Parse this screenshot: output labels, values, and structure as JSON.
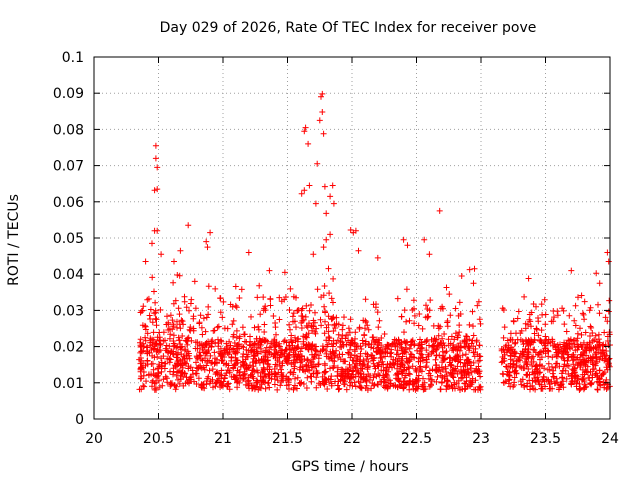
{
  "chart_data": {
    "type": "scatter",
    "title": "Day 029 of 2026, Rate Of TEC Index for receiver pove",
    "xlabel": "GPS time / hours",
    "ylabel": "ROTI / TECUs",
    "xlim": [
      20,
      24
    ],
    "ylim": [
      0,
      0.1
    ],
    "xticks": [
      "20",
      "20.5",
      "21",
      "21.5",
      "22",
      "22.5",
      "23",
      "23.5",
      "24"
    ],
    "yticks": [
      "0",
      "0.01",
      "0.02",
      "0.03",
      "0.04",
      "0.05",
      "0.06",
      "0.07",
      "0.08",
      "0.09",
      "0.1"
    ],
    "grid": true,
    "marker": "+",
    "series_color": "#ff0000",
    "data_gap": [
      23.0,
      23.16
    ],
    "series": [
      {
        "name": "ROTI",
        "points": [
          [
            20.48,
            0.0755
          ],
          [
            20.48,
            0.072
          ],
          [
            20.49,
            0.0695
          ],
          [
            20.47,
            0.0632
          ],
          [
            20.49,
            0.0635
          ],
          [
            20.47,
            0.052
          ],
          [
            20.49,
            0.052
          ],
          [
            20.45,
            0.0485
          ],
          [
            20.52,
            0.0455
          ],
          [
            20.4,
            0.0435
          ],
          [
            20.62,
            0.0435
          ],
          [
            20.67,
            0.0465
          ],
          [
            20.73,
            0.0535
          ],
          [
            20.88,
            0.0475
          ],
          [
            20.9,
            0.0515
          ],
          [
            20.87,
            0.049
          ],
          [
            21.2,
            0.046
          ],
          [
            21.36,
            0.041
          ],
          [
            21.48,
            0.0405
          ],
          [
            21.64,
            0.0805
          ],
          [
            21.63,
            0.0795
          ],
          [
            21.66,
            0.076
          ],
          [
            21.61,
            0.0622
          ],
          [
            21.63,
            0.0632
          ],
          [
            21.67,
            0.0645
          ],
          [
            21.72,
            0.0595
          ],
          [
            21.73,
            0.0705
          ],
          [
            21.75,
            0.0825
          ],
          [
            21.76,
            0.089
          ],
          [
            21.77,
            0.0898
          ],
          [
            21.77,
            0.0848
          ],
          [
            21.78,
            0.0788
          ],
          [
            21.79,
            0.0642
          ],
          [
            21.8,
            0.0568
          ],
          [
            21.83,
            0.0615
          ],
          [
            21.85,
            0.0645
          ],
          [
            21.86,
            0.0595
          ],
          [
            21.83,
            0.051
          ],
          [
            21.8,
            0.0495
          ],
          [
            21.78,
            0.0475
          ],
          [
            21.7,
            0.0455
          ],
          [
            21.99,
            0.0522
          ],
          [
            22.01,
            0.0515
          ],
          [
            22.03,
            0.052
          ],
          [
            22.05,
            0.0465
          ],
          [
            22.2,
            0.0445
          ],
          [
            22.4,
            0.0495
          ],
          [
            22.43,
            0.048
          ],
          [
            22.56,
            0.0495
          ],
          [
            22.6,
            0.0455
          ],
          [
            22.68,
            0.0575
          ],
          [
            22.85,
            0.0395
          ],
          [
            22.95,
            0.0415
          ],
          [
            23.7,
            0.041
          ],
          [
            23.92,
            0.0375
          ],
          [
            23.98,
            0.046
          ],
          [
            23.99,
            0.0435
          ]
        ]
      }
    ]
  }
}
